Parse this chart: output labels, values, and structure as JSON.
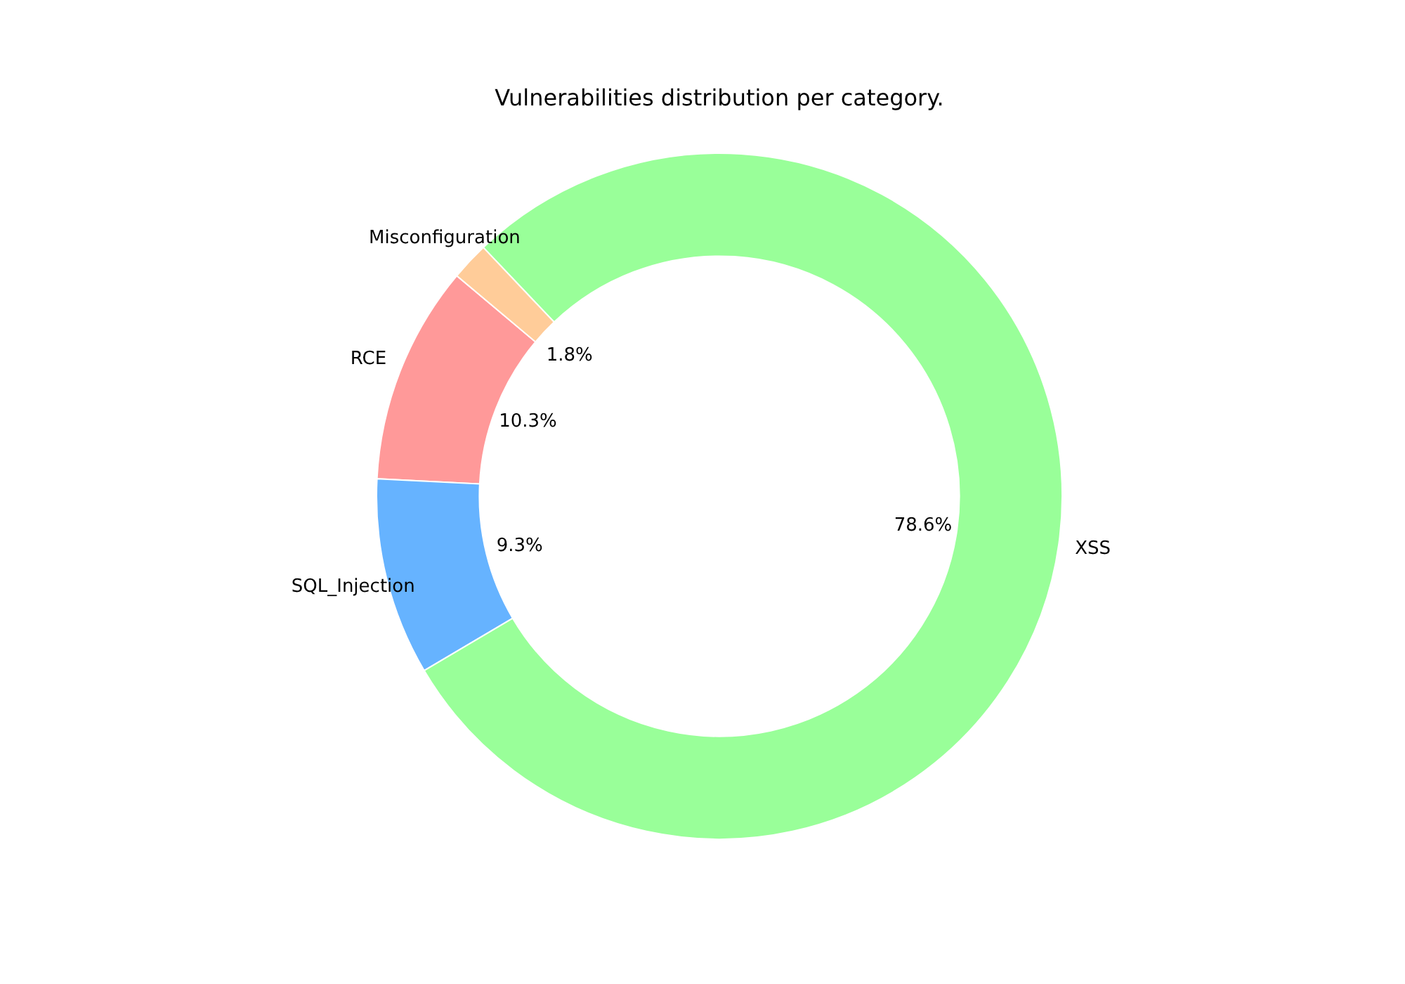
{
  "chart_data": {
    "type": "donut",
    "title": "Vulnerabilities distribution per category.",
    "categories": [
      "RCE",
      "SQL_Injection",
      "XSS",
      "Misconfiguration"
    ],
    "values": [
      10.3,
      9.3,
      78.6,
      1.8
    ],
    "colors": [
      "#ff9999",
      "#66b3ff",
      "#99ff99",
      "#ffcc99"
    ],
    "value_labels": [
      "10.3%",
      "9.3%",
      "78.6%",
      "1.8%"
    ]
  }
}
